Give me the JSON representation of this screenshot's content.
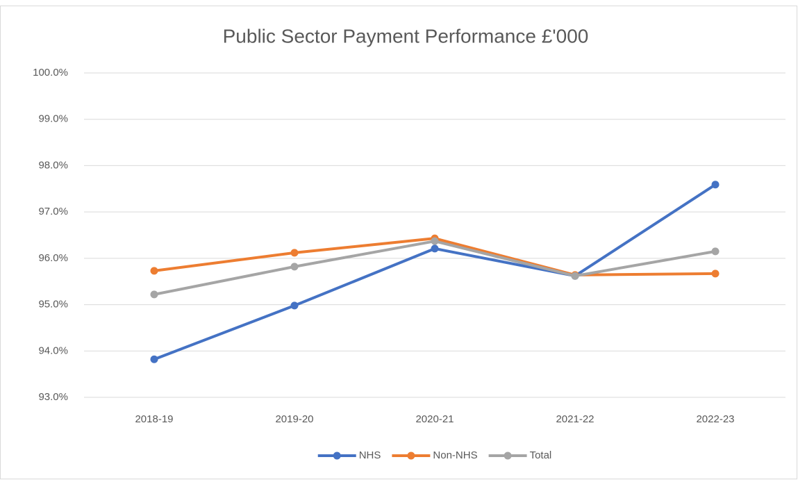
{
  "chart_data": {
    "type": "line",
    "title": "Public Sector Payment Performance £'000",
    "categories": [
      "2018-19",
      "2019-20",
      "2020-21",
      "2021-22",
      "2022-23"
    ],
    "series": [
      {
        "name": "NHS",
        "color": "#4472c4",
        "values": [
          93.82,
          94.98,
          96.21,
          95.62,
          97.59
        ]
      },
      {
        "name": "Non-NHS",
        "color": "#ed7d31",
        "values": [
          95.73,
          96.12,
          96.43,
          95.64,
          95.67
        ]
      },
      {
        "name": "Total",
        "color": "#a5a5a5",
        "values": [
          95.22,
          95.82,
          96.37,
          95.62,
          96.15
        ]
      }
    ],
    "ylim": [
      93,
      100
    ],
    "yticks": [
      {
        "value": 93,
        "label": "93.0%"
      },
      {
        "value": 94,
        "label": "94.0%"
      },
      {
        "value": 95,
        "label": "95.0%"
      },
      {
        "value": 96,
        "label": "96.0%"
      },
      {
        "value": 97,
        "label": "97.0%"
      },
      {
        "value": 98,
        "label": "98.0%"
      },
      {
        "value": 99,
        "label": "99.0%"
      },
      {
        "value": 100,
        "label": "100.0%"
      }
    ],
    "grid": true,
    "legend": "bottom"
  }
}
